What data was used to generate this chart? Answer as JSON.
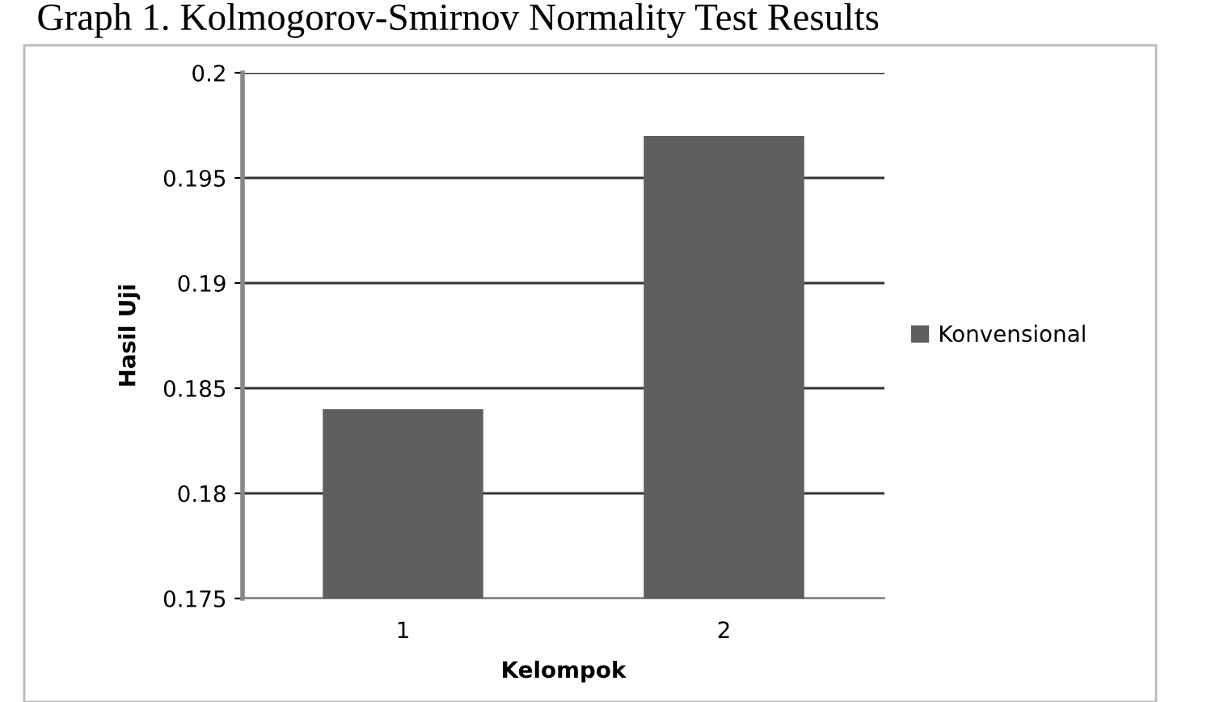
{
  "chart_data": {
    "type": "bar",
    "title": "Graph 1. Kolmogorov-Smirnov Normality Test Results",
    "xlabel": "Kelompok",
    "ylabel": "Hasil Uji",
    "categories": [
      "1",
      "2"
    ],
    "series": [
      {
        "name": "Konvensional",
        "color": "#5f5f5f",
        "values": [
          0.184,
          0.197
        ]
      }
    ],
    "ylim": [
      0.175,
      0.2
    ],
    "yticks": [
      0.175,
      0.18,
      0.185,
      0.19,
      0.195,
      0.2
    ],
    "grid": "y",
    "legend": "right"
  }
}
